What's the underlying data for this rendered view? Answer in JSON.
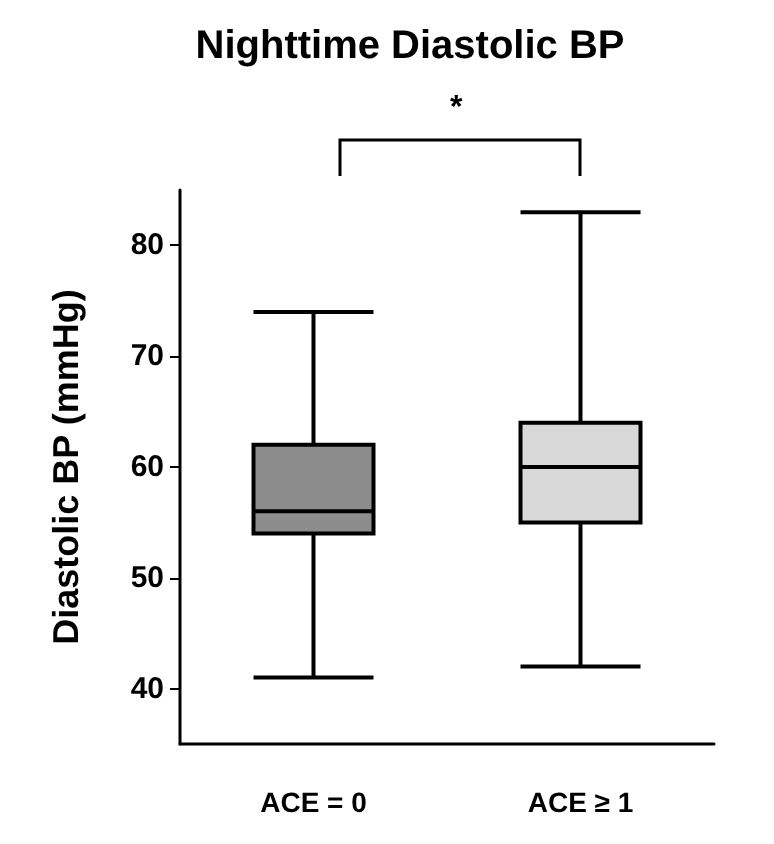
{
  "chart_data": {
    "type": "box",
    "title": "Nighttime Diastolic BP",
    "ylabel": "Diastolic BP (mmHg)",
    "categories": [
      "ACE = 0",
      "ACE ≥ 1"
    ],
    "boxes": [
      {
        "low": 41,
        "q1": 54,
        "median": 56,
        "q3": 62,
        "high": 74
      },
      {
        "low": 42,
        "q1": 55,
        "median": 60,
        "q3": 64,
        "high": 83
      }
    ],
    "colors": [
      "#8c8c8c",
      "#d9d9d9"
    ],
    "ylim": [
      35,
      85
    ],
    "yticks": [
      40,
      50,
      60,
      70,
      80
    ],
    "grid": false,
    "annotations": [
      "*"
    ]
  }
}
